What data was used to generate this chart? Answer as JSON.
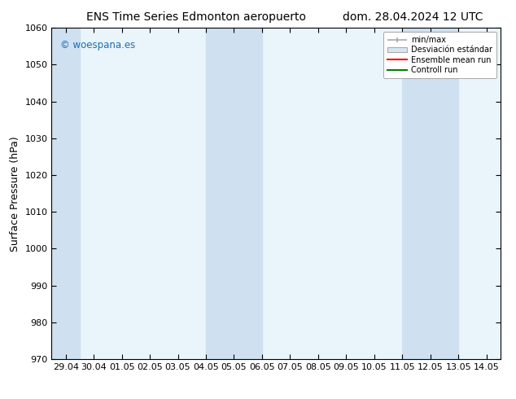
{
  "title_left": "ENS Time Series Edmonton aeropuerto",
  "title_right": "dom. 28.04.2024 12 UTC",
  "ylabel": "Surface Pressure (hPa)",
  "ylim": [
    970,
    1060
  ],
  "yticks": [
    970,
    980,
    990,
    1000,
    1010,
    1020,
    1030,
    1040,
    1050,
    1060
  ],
  "x_labels": [
    "29.04",
    "30.04",
    "01.05",
    "02.05",
    "03.05",
    "04.05",
    "05.05",
    "06.05",
    "07.05",
    "08.05",
    "09.05",
    "10.05",
    "11.05",
    "12.05",
    "13.05",
    "14.05"
  ],
  "x_values": [
    0,
    1,
    2,
    3,
    4,
    5,
    6,
    7,
    8,
    9,
    10,
    11,
    12,
    13,
    14,
    15
  ],
  "shaded_bands": [
    {
      "xstart": -0.5,
      "xend": 0.5
    },
    {
      "xstart": 5,
      "xend": 7
    },
    {
      "xstart": 12,
      "xend": 14
    }
  ],
  "shaded_color": "#cfe0f0",
  "plot_bg_color": "#eaf4fb",
  "background_color": "#ffffff",
  "watermark": "© woespana.es",
  "watermark_color": "#1a6eb5",
  "legend_minmax_color": "#aaaaaa",
  "legend_std_color": "#cccccc",
  "legend_mean_color": "#ff0000",
  "legend_control_color": "#008000",
  "title_fontsize": 10,
  "label_fontsize": 9,
  "tick_fontsize": 8,
  "legend_label_minmax": "min/max",
  "legend_label_std": "Desviación estándar",
  "legend_label_mean": "Ensemble mean run",
  "legend_label_ctrl": "Controll run"
}
